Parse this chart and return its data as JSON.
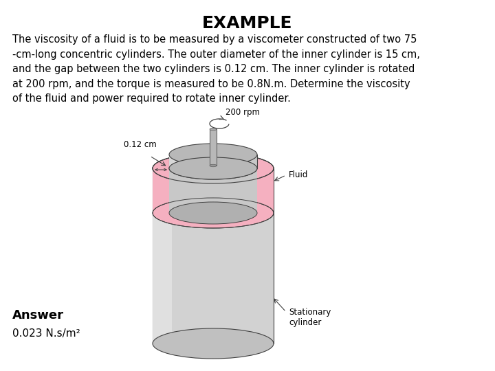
{
  "title": "EXAMPLE",
  "title_fontsize": 18,
  "title_fontweight": "bold",
  "body_text": "The viscosity of a fluid is to be measured by a viscometer constructed of two 75\n-cm-long concentric cylinders. The outer diameter of the inner cylinder is 15 cm,\nand the gap between the two cylinders is 0.12 cm. The inner cylinder is rotated\nat 200 rpm, and the torque is measured to be 0.8N.m. Determine the viscosity\nof the fluid and power required to rotate inner cylinder.",
  "body_fontsize": 10.5,
  "answer_label": "Answer",
  "answer_value": "0.023 N.s/m²",
  "answer_fontsize": 13,
  "answer_value_fontsize": 11,
  "label_200rpm": "200 rpm",
  "label_012cm": "0.12 cm",
  "label_fluid": "Fluid",
  "label_stationary": "Stationary\ncylinder",
  "bg_color": "#ffffff",
  "col_outer_body": "#d2d2d2",
  "col_outer_top": "#c0c0c0",
  "col_outer_bot": "#c8c8c8",
  "col_inner_body": "#c8c8c8",
  "col_inner_top": "#b8b8b8",
  "col_fluid": "#f5b0c0",
  "col_shaft": "#b8b8b8",
  "col_line": "#404040"
}
